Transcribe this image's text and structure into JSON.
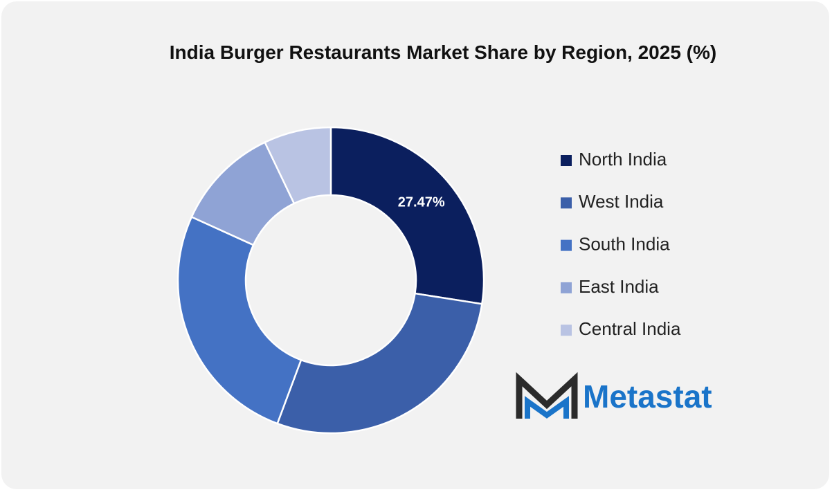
{
  "chart_data": {
    "type": "donut",
    "title": "India Burger Restaurants Market Share by Region, 2025 (%)",
    "categories": [
      "North India",
      "West India",
      "South India",
      "East India",
      "Central India"
    ],
    "values": [
      27.47,
      28.2,
      26.1,
      11.1,
      7.1
    ],
    "value_labels": [
      "27.47%",
      null,
      null,
      null,
      null
    ],
    "colors": [
      "#0b1f5e",
      "#3b5fa9",
      "#4472c4",
      "#8fa3d5",
      "#b9c3e3"
    ],
    "legend": "right"
  },
  "logo": "Metastat"
}
